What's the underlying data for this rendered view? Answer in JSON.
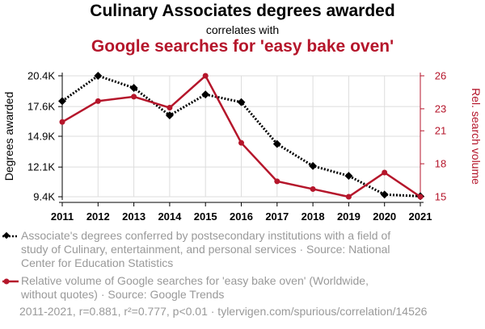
{
  "header": {
    "title": "Culinary Associates degrees awarded",
    "subtitle": "correlates with",
    "title2": "Google searches for 'easy bake oven'"
  },
  "legend": {
    "series1": "Associate's degrees conferred by postsecondary institutions with a field of study of Culinary, entertainment, and personal services · Source: National Center for Education Statistics",
    "series2": "Relative volume of Google searches for 'easy bake oven' (Worldwide, without quotes) · Source: Google Trends"
  },
  "footer": "2011-2021, r=0.881, r²=0.777, p<0.01 · tylervigen.com/spurious/correlation/14526",
  "colors": {
    "series1": "#000000",
    "series2": "#b5162b",
    "grid": "#dddddd"
  },
  "chart_data": {
    "type": "line",
    "x": [
      2011,
      2012,
      2013,
      2014,
      2015,
      2016,
      2017,
      2018,
      2019,
      2020,
      2021
    ],
    "grid": true,
    "y_left": {
      "label": "Degrees awarded",
      "ticks": [
        9400,
        12100,
        14900,
        17600,
        20400
      ],
      "tick_labels": [
        "9.4K",
        "12.1K",
        "14.9K",
        "17.6K",
        "20.4K"
      ],
      "range": [
        9400,
        20400
      ]
    },
    "y_right": {
      "label": "Rel. search volume",
      "ticks": [
        15,
        18,
        21,
        23,
        26
      ],
      "tick_labels": [
        "15",
        "18",
        "21",
        "23",
        "26"
      ],
      "range": [
        15,
        26
      ]
    },
    "series": [
      {
        "axis": "left",
        "style": "dotted",
        "marker": "diamond",
        "values": [
          18100,
          20400,
          19300,
          16800,
          18700,
          18000,
          14200,
          12200,
          11300,
          9600,
          9450
        ]
      },
      {
        "axis": "right",
        "style": "solid",
        "marker": "circle",
        "values": [
          21.8,
          23.7,
          24.1,
          23.1,
          26.0,
          19.9,
          16.4,
          15.7,
          15.0,
          17.2,
          15.0
        ]
      }
    ]
  }
}
